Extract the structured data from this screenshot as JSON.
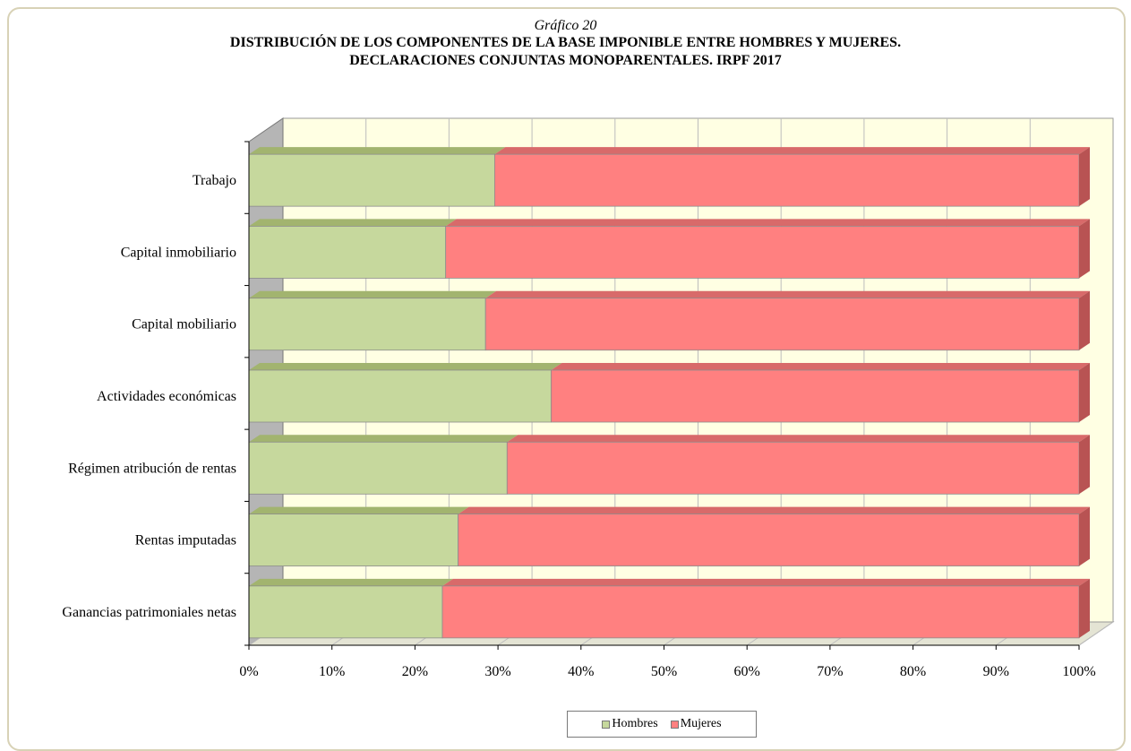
{
  "chart_data": {
    "type": "bar",
    "orientation": "horizontal",
    "stacked": "percent",
    "subtitle": "Gráfico 20",
    "title_line1": "DISTRIBUCIÓN DE LOS COMPONENTES DE LA BASE IMPONIBLE ENTRE HOMBRES Y MUJERES.",
    "title_line2": "DECLARACIONES CONJUNTAS MONOPARENTALES.  IRPF 2017",
    "categories": [
      "Trabajo",
      "Capital inmobiliario",
      "Capital mobiliario",
      "Actividades económicas",
      "Régimen atribución de rentas",
      "Rentas imputadas",
      "Ganancias patrimoniales netas"
    ],
    "series": [
      {
        "name": "Hombres",
        "color": "#c6d89d",
        "values": [
          29.6,
          23.7,
          28.5,
          36.4,
          31.1,
          25.2,
          23.3
        ]
      },
      {
        "name": "Mujeres",
        "color": "#ff8080",
        "values": [
          70.4,
          76.3,
          71.5,
          63.6,
          68.9,
          74.8,
          76.7
        ]
      }
    ],
    "xlim": [
      0,
      100
    ],
    "x_ticks": [
      "0%",
      "10%",
      "20%",
      "30%",
      "40%",
      "50%",
      "60%",
      "70%",
      "80%",
      "90%",
      "100%"
    ],
    "grid": true,
    "legend_position": "bottom"
  }
}
